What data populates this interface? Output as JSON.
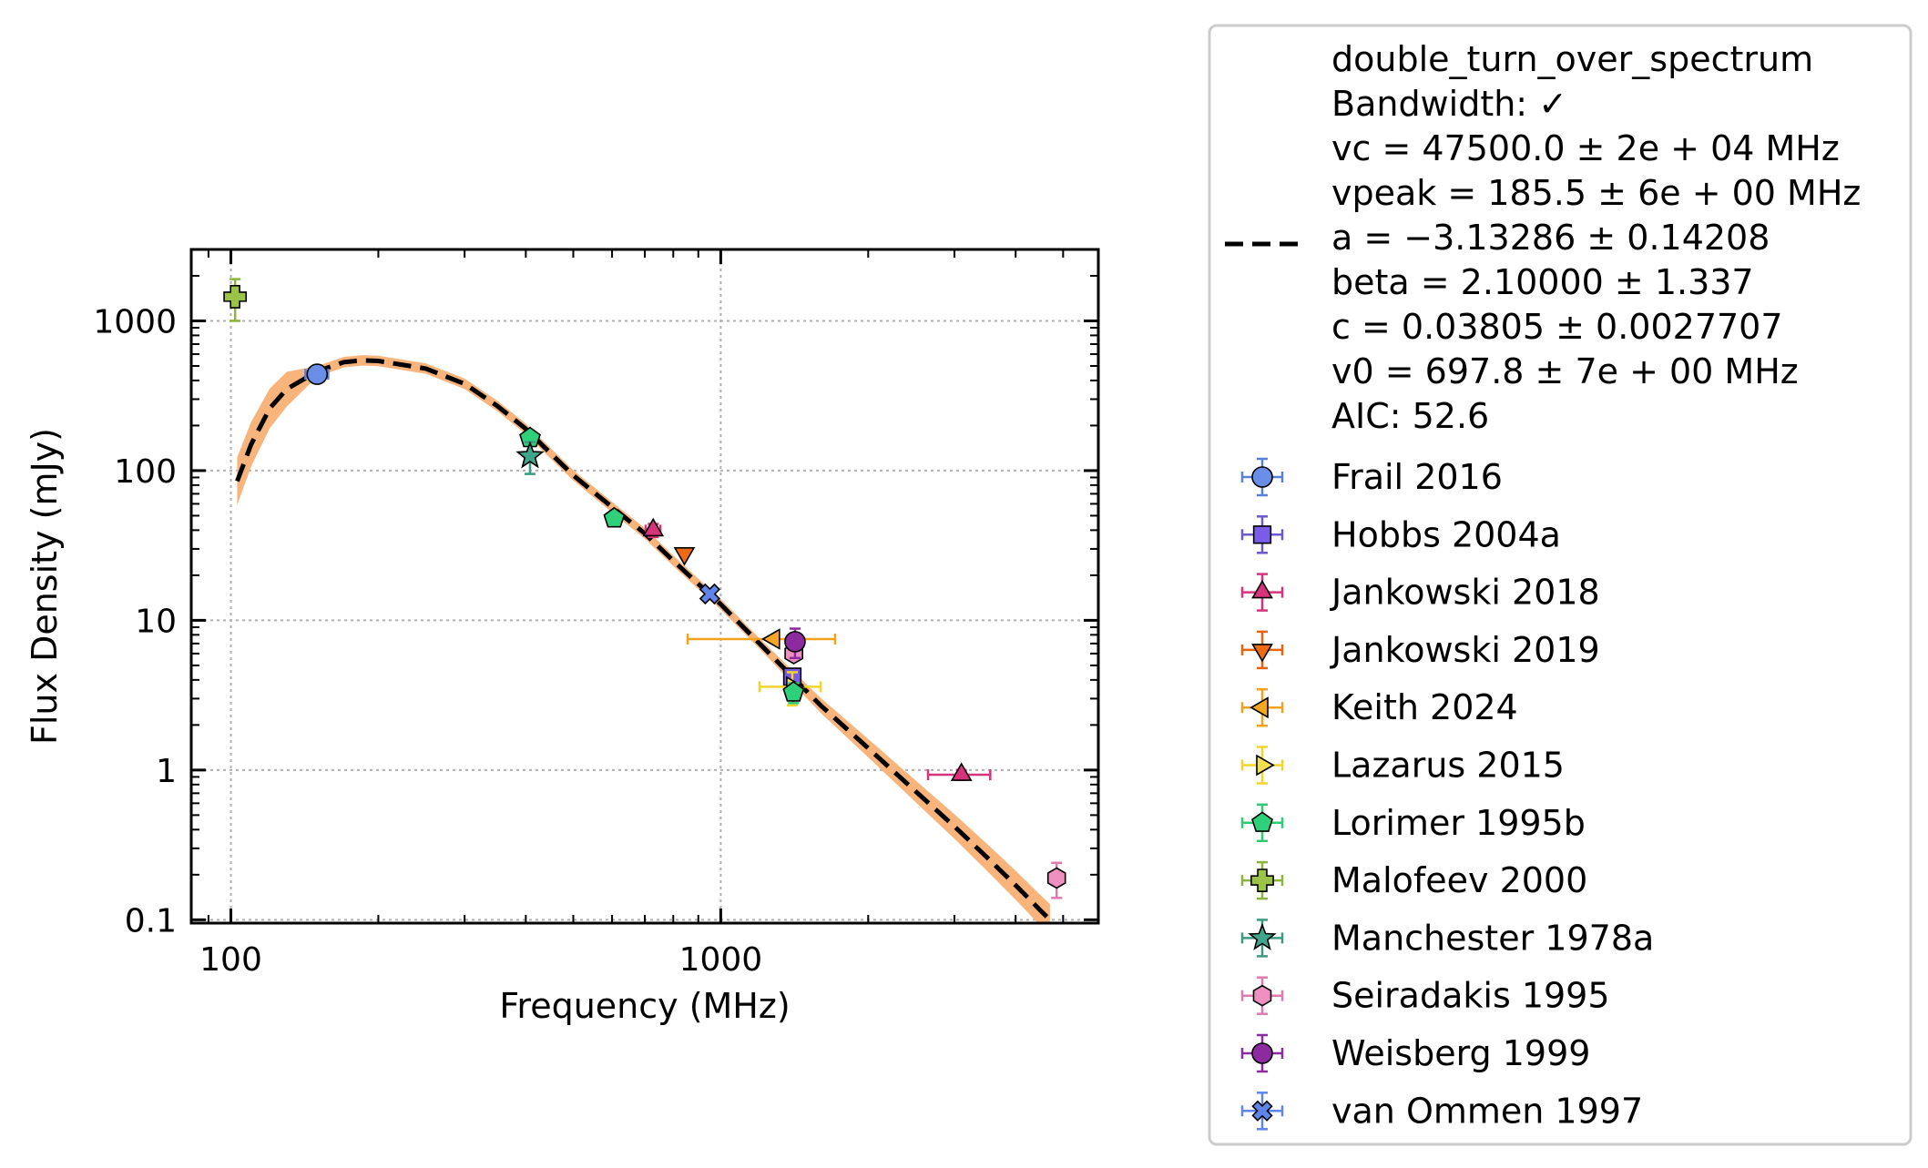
{
  "chart_data": {
    "type": "scatter",
    "xlabel": "Frequency (MHz)",
    "ylabel": "Flux Density (mJy)",
    "x_scale": "log",
    "y_scale": "log",
    "xlim": [
      83,
      5900
    ],
    "ylim": [
      0.095,
      3000
    ],
    "x_ticks": [
      100,
      1000
    ],
    "x_tick_labels": [
      "100",
      "1000"
    ],
    "y_ticks": [
      0.1,
      1,
      10,
      100,
      1000
    ],
    "y_tick_labels": [
      "0.1",
      "1",
      "10",
      "100",
      "1000"
    ],
    "grid": true,
    "legend_position": "outside right",
    "fit": {
      "model": "double_turn_over_spectrum",
      "legend_lines": [
        "double_turn_over_spectrum",
        "Bandwidth: ✓",
        "vc = 47500.0 ± 2e + 04 MHz",
        "vpeak = 185.5 ± 6e + 00 MHz",
        "a = −3.13286 ± 0.14208",
        "beta = 2.10000 ± 1.337",
        "c = 0.03805 ± 0.0027707",
        "v0 = 697.8 ± 7e + 00 MHz",
        "AIC: 52.6"
      ],
      "curve": [
        [
          103,
          85
        ],
        [
          110,
          150
        ],
        [
          120,
          260
        ],
        [
          130,
          350
        ],
        [
          150,
          460
        ],
        [
          170,
          530
        ],
        [
          185,
          545
        ],
        [
          200,
          540
        ],
        [
          250,
          480
        ],
        [
          300,
          380
        ],
        [
          350,
          270
        ],
        [
          400,
          190
        ],
        [
          450,
          130
        ],
        [
          500,
          93
        ],
        [
          600,
          57
        ],
        [
          700,
          38
        ],
        [
          800,
          25
        ],
        [
          900,
          17.5
        ],
        [
          1000,
          12.8
        ],
        [
          1200,
          7.0
        ],
        [
          1400,
          4.2
        ],
        [
          1600,
          2.7
        ],
        [
          2000,
          1.4
        ],
        [
          2500,
          0.72
        ],
        [
          3000,
          0.42
        ],
        [
          3500,
          0.26
        ],
        [
          4000,
          0.17
        ],
        [
          4500,
          0.115
        ],
        [
          4700,
          0.1
        ]
      ],
      "line_color": "#000000",
      "band_color": "#f9b47c"
    },
    "series": [
      {
        "name": "Frail 2016",
        "marker": "circle",
        "color": "#6a8ee8",
        "edge": "#5b7fd6",
        "points": [
          {
            "x": 150,
            "y": 440,
            "xerr": [
              8,
              8
            ],
            "yerr": [
              30,
              30
            ]
          }
        ]
      },
      {
        "name": "Hobbs 2004a",
        "marker": "square",
        "color": "#7b5ce6",
        "edge": "#6a5acd",
        "points": [
          {
            "x": 1400,
            "y": 4.2,
            "xerr": [
              0,
              0
            ],
            "yerr": [
              0.5,
              0.5
            ]
          }
        ]
      },
      {
        "name": "Jankowski 2018",
        "marker": "triangle-up",
        "color": "#d6337a",
        "edge": "#d6337a",
        "points": [
          {
            "x": 728,
            "y": 40,
            "xerr": [
              25,
              25
            ],
            "yerr": [
              4,
              4
            ]
          },
          {
            "x": 3100,
            "y": 0.93,
            "xerr": [
              450,
              450
            ],
            "yerr": [
              0.07,
              0.07
            ]
          }
        ]
      },
      {
        "name": "Jankowski 2019",
        "marker": "triangle-down",
        "color": "#f06a14",
        "edge": "#e8620f",
        "points": [
          {
            "x": 843,
            "y": 28,
            "xerr": [
              0,
              0
            ],
            "yerr": [
              0,
              0
            ]
          }
        ]
      },
      {
        "name": "Keith 2024",
        "marker": "triangle-left",
        "color": "#f5a623",
        "edge": "#f0a21e",
        "points": [
          {
            "x": 1284,
            "y": 7.5,
            "xerr": [
              428,
              428
            ],
            "yerr": [
              0,
              0
            ]
          }
        ]
      },
      {
        "name": "Lazarus 2015",
        "marker": "triangle-right",
        "color": "#f4e04d",
        "edge": "#f2d52b",
        "points": [
          {
            "x": 1400,
            "y": 3.6,
            "xerr": [
              200,
              200
            ],
            "yerr": [
              0.9,
              0.9
            ]
          }
        ]
      },
      {
        "name": "Lorimer 1995b",
        "marker": "pentagon",
        "color": "#2fd07a",
        "edge": "#2ecc71",
        "points": [
          {
            "x": 408,
            "y": 165,
            "xerr": [
              0,
              0
            ],
            "yerr": [
              15,
              15
            ]
          },
          {
            "x": 606,
            "y": 48,
            "xerr": [
              0,
              0
            ],
            "yerr": [
              4,
              4
            ]
          },
          {
            "x": 1408,
            "y": 3.3,
            "xerr": [
              0,
              0
            ],
            "yerr": [
              0.5,
              0.5
            ]
          }
        ]
      },
      {
        "name": "Malofeev 2000",
        "marker": "plus",
        "color": "#9bc34a",
        "edge": "#8db33d",
        "points": [
          {
            "x": 102,
            "y": 1450,
            "xerr": [
              0,
              0
            ],
            "yerr": [
              450,
              450
            ]
          }
        ]
      },
      {
        "name": "Manchester 1978a",
        "marker": "star",
        "color": "#3fa58b",
        "edge": "#3a9a82",
        "points": [
          {
            "x": 408,
            "y": 125,
            "xerr": [
              0,
              0
            ],
            "yerr": [
              30,
              30
            ]
          }
        ]
      },
      {
        "name": "Seiradakis 1995",
        "marker": "hexagon",
        "color": "#ee8fbf",
        "edge": "#e07aae",
        "points": [
          {
            "x": 1410,
            "y": 6.0,
            "xerr": [
              0,
              0
            ],
            "yerr": [
              0.6,
              0.6
            ]
          },
          {
            "x": 4850,
            "y": 0.19,
            "xerr": [
              0,
              0
            ],
            "yerr": [
              0.05,
              0.05
            ]
          }
        ]
      },
      {
        "name": "Weisberg 1999",
        "marker": "circle",
        "color": "#8e2aa0",
        "edge": "#8e2aa0",
        "points": [
          {
            "x": 1418,
            "y": 7.2,
            "xerr": [
              0,
              0
            ],
            "yerr": [
              1.6,
              1.6
            ]
          }
        ]
      },
      {
        "name": "van Ommen 1997",
        "marker": "x",
        "color": "#5f85e8",
        "edge": "#5f85e8",
        "points": [
          {
            "x": 950,
            "y": 15,
            "xerr": [
              0,
              0
            ],
            "yerr": [
              0,
              0
            ]
          }
        ]
      }
    ]
  }
}
